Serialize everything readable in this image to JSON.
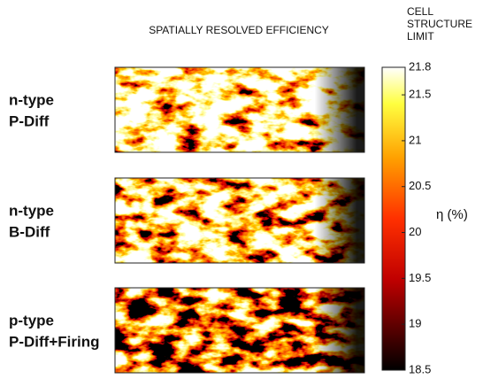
{
  "title": "SPATIALLY RESOLVED EFFICIENCY",
  "panels": [
    {
      "label_lines": [
        "n-type",
        "P-Diff"
      ],
      "color": "#2fa84f"
    },
    {
      "label_lines": [
        "n-type",
        "B-Diff"
      ],
      "color": "#e8834a"
    },
    {
      "label_lines": [
        "p-type",
        "P-Diff+Firing"
      ],
      "color": "#2e7d3a"
    }
  ],
  "colorbar": {
    "top_label_lines": [
      "CELL",
      "STRUCTURE",
      "LIMIT"
    ],
    "axis_label": "η (%)",
    "range": [
      18.5,
      21.8
    ],
    "ticks": [
      21.8,
      21.5,
      21,
      20.5,
      20,
      19.5,
      19,
      18.5
    ]
  }
}
